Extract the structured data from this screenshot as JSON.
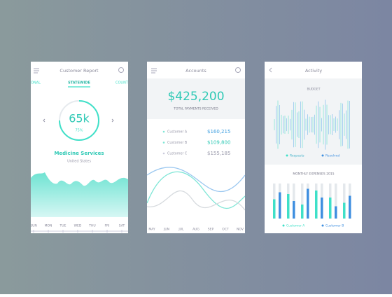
{
  "report": {
    "title": "Customer Report",
    "tabs": [
      "ONAL",
      "STATEWIDE",
      "COUNT"
    ],
    "gauge": {
      "value": "65k",
      "percent": "75%"
    },
    "category": "Medicine Services",
    "region": "United States",
    "days": [
      "SUN",
      "MON",
      "TUE",
      "WED",
      "THU",
      "FRI",
      "SAT"
    ]
  },
  "accounts": {
    "title": "Accounts",
    "total": "$425,200",
    "total_label": "TOTAL PAYMENTS RECEIVED",
    "customers": [
      {
        "name": "Customer A",
        "amount": "$160,215"
      },
      {
        "name": "Customer B",
        "amount": "$109,800"
      },
      {
        "name": "Customer C",
        "amount": "$155,185"
      }
    ],
    "months": [
      "MAY",
      "JUN",
      "JUL",
      "AUG",
      "SEP",
      "OCT",
      "NOV"
    ]
  },
  "activity": {
    "title": "Activity",
    "budget_label": "BUDGET",
    "budget_legend": [
      "Requests",
      "Resolved"
    ],
    "chart_data": {
      "type": "bar",
      "title": "MONTHLY EXPENSES 2015",
      "ylim": [
        0,
        100
      ],
      "categories": [
        null,
        null,
        null,
        null,
        null,
        null
      ],
      "series": [
        {
          "name": "Customer A",
          "color": "#3fe0c8",
          "values": [
            55,
            70,
            40,
            80,
            60,
            45
          ]
        },
        {
          "name": "Customer B",
          "color": "#3f8fe0",
          "values": [
            75,
            50,
            85,
            60,
            35,
            65
          ]
        }
      ]
    }
  }
}
